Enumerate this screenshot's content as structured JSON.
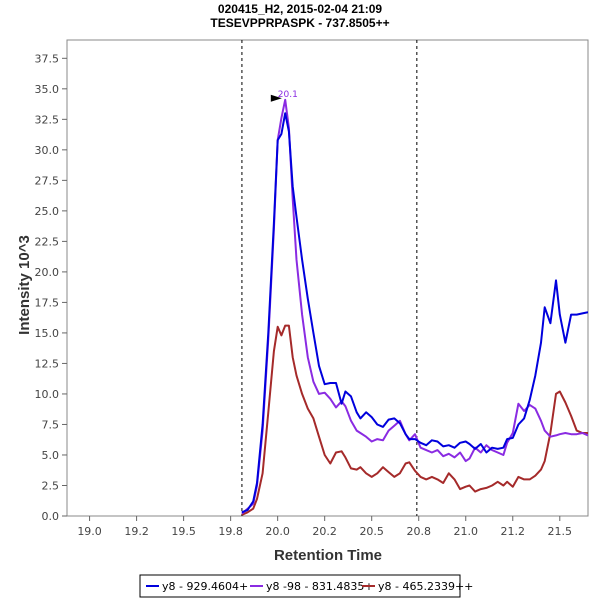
{
  "chart_data": {
    "type": "line",
    "title": "020415_H2, 2015-02-04 21:09",
    "subtitle": "TESEVPPRPASPK - 737.8505++",
    "xlabel": "Retention Time",
    "ylabel": "Intensity 10^3",
    "xlim": [
      18.88,
      21.65
    ],
    "ylim": [
      0,
      39
    ],
    "x_ticks": [
      19.0,
      19.25,
      19.5,
      19.75,
      20.0,
      20.25,
      20.5,
      20.75,
      21.0,
      21.25,
      21.5
    ],
    "x_tick_labels": [
      "19.0",
      "19.2",
      "19.5",
      "19.8",
      "20.0",
      "20.2",
      "20.5",
      "20.8",
      "21.0",
      "21.2",
      "21.5"
    ],
    "y_ticks": [
      0,
      2.5,
      5,
      7.5,
      10,
      12.5,
      15,
      17.5,
      20,
      22.5,
      25,
      27.5,
      30,
      32.5,
      35,
      37.5
    ],
    "y_tick_labels": [
      "0.0",
      "2.5",
      "5.0",
      "7.5",
      "10.0",
      "12.5",
      "15.0",
      "17.5",
      "20.0",
      "22.5",
      "25.0",
      "27.5",
      "30.0",
      "32.5",
      "35.0",
      "37.5"
    ],
    "boundaries": [
      19.81,
      20.74
    ],
    "peak_annotation": {
      "label": "20.1",
      "x": 20.07,
      "y": 34.1,
      "color": "#8a2be2"
    },
    "legend_position": "bottom-center",
    "series": [
      {
        "name": "y8 - 929.4604+",
        "color": "#0000dd",
        "x": [
          19.81,
          19.84,
          19.87,
          19.89,
          19.92,
          19.95,
          19.98,
          20.0,
          20.02,
          20.04,
          20.06,
          20.08,
          20.1,
          20.13,
          20.16,
          20.19,
          20.22,
          20.25,
          20.28,
          20.31,
          20.34,
          20.36,
          20.39,
          20.42,
          20.44,
          20.47,
          20.5,
          20.53,
          20.56,
          20.59,
          20.62,
          20.65,
          20.68,
          20.7,
          20.73,
          20.76,
          20.79,
          20.82,
          20.85,
          20.88,
          20.91,
          20.94,
          20.97,
          21.0,
          21.02,
          21.05,
          21.08,
          21.11,
          21.14,
          21.17,
          21.2,
          21.22,
          21.25,
          21.28,
          21.31,
          21.34,
          21.37,
          21.4,
          21.42,
          21.45,
          21.48,
          21.5,
          21.53,
          21.56,
          21.59,
          21.62,
          21.65
        ],
        "y": [
          0.3,
          0.5,
          1.2,
          2.7,
          7.5,
          15.0,
          24.0,
          30.8,
          31.3,
          33.0,
          31.5,
          27.0,
          24.5,
          21.0,
          17.8,
          15.0,
          12.3,
          10.8,
          10.9,
          10.9,
          9.2,
          10.2,
          9.8,
          8.5,
          8.0,
          8.5,
          8.1,
          7.5,
          7.3,
          7.9,
          8.0,
          7.6,
          6.7,
          6.3,
          6.3,
          6.0,
          5.8,
          6.2,
          6.1,
          5.7,
          5.8,
          5.6,
          6.0,
          6.1,
          5.9,
          5.5,
          5.9,
          5.2,
          5.6,
          5.5,
          5.6,
          6.3,
          6.4,
          7.5,
          8.0,
          9.5,
          11.5,
          14.2,
          17.1,
          15.8,
          19.3,
          16.5,
          14.2,
          16.5,
          16.5,
          16.6,
          16.7
        ]
      },
      {
        "name": "y8 -98 - 831.4835+",
        "color": "#8a2be2",
        "x": [
          19.81,
          19.84,
          19.87,
          19.89,
          19.92,
          19.95,
          19.98,
          20.0,
          20.02,
          20.04,
          20.06,
          20.08,
          20.1,
          20.13,
          20.16,
          20.19,
          20.22,
          20.25,
          20.28,
          20.31,
          20.34,
          20.36,
          20.39,
          20.42,
          20.44,
          20.47,
          20.5,
          20.53,
          20.56,
          20.59,
          20.62,
          20.65,
          20.68,
          20.7,
          20.73,
          20.76,
          20.79,
          20.82,
          20.85,
          20.88,
          20.91,
          20.94,
          20.97,
          21.0,
          21.02,
          21.05,
          21.08,
          21.11,
          21.14,
          21.17,
          21.2,
          21.22,
          21.25,
          21.28,
          21.31,
          21.34,
          21.37,
          21.4,
          21.42,
          21.45,
          21.48,
          21.5,
          21.53,
          21.56,
          21.59,
          21.62,
          21.65
        ],
        "y": [
          0.2,
          0.6,
          1.0,
          2.5,
          7.0,
          14.5,
          23.5,
          30.8,
          32.6,
          34.1,
          31.8,
          26.0,
          21.0,
          16.5,
          13.0,
          11.0,
          10.0,
          10.1,
          9.6,
          8.9,
          9.4,
          9.0,
          7.8,
          7.0,
          6.8,
          6.5,
          6.1,
          6.3,
          6.2,
          7.0,
          7.4,
          7.8,
          6.7,
          6.2,
          6.7,
          5.6,
          5.4,
          5.2,
          5.4,
          4.9,
          5.1,
          4.8,
          5.2,
          4.5,
          4.7,
          5.6,
          5.2,
          5.8,
          5.4,
          5.2,
          5.0,
          6.0,
          6.8,
          9.2,
          8.6,
          9.1,
          8.8,
          7.8,
          7.0,
          6.5,
          6.6,
          6.7,
          6.8,
          6.7,
          6.7,
          6.8,
          6.6
        ]
      },
      {
        "name": "y8 - 465.2339++",
        "color": "#a52a2a",
        "x": [
          19.81,
          19.84,
          19.87,
          19.89,
          19.92,
          19.95,
          19.98,
          20.0,
          20.02,
          20.04,
          20.06,
          20.08,
          20.1,
          20.13,
          20.16,
          20.19,
          20.22,
          20.25,
          20.28,
          20.31,
          20.34,
          20.36,
          20.39,
          20.42,
          20.44,
          20.47,
          20.5,
          20.53,
          20.56,
          20.59,
          20.62,
          20.65,
          20.68,
          20.7,
          20.73,
          20.76,
          20.79,
          20.82,
          20.85,
          20.88,
          20.91,
          20.94,
          20.97,
          21.0,
          21.02,
          21.05,
          21.08,
          21.11,
          21.14,
          21.17,
          21.2,
          21.22,
          21.25,
          21.28,
          21.31,
          21.34,
          21.37,
          21.4,
          21.42,
          21.45,
          21.48,
          21.5,
          21.53,
          21.56,
          21.59,
          21.62,
          21.65
        ],
        "y": [
          0.1,
          0.3,
          0.6,
          1.4,
          3.5,
          8.5,
          13.5,
          15.5,
          14.8,
          15.6,
          15.6,
          13.0,
          11.5,
          10.0,
          8.8,
          8.0,
          6.5,
          5.0,
          4.3,
          5.2,
          5.3,
          4.8,
          3.9,
          3.8,
          4.0,
          3.5,
          3.2,
          3.5,
          4.0,
          3.6,
          3.2,
          3.5,
          4.3,
          4.4,
          3.7,
          3.2,
          3.0,
          3.2,
          3.0,
          2.7,
          3.5,
          3.0,
          2.2,
          2.4,
          2.5,
          2.0,
          2.2,
          2.3,
          2.5,
          2.8,
          2.5,
          2.8,
          2.4,
          3.2,
          3.0,
          3.0,
          3.3,
          3.8,
          4.5,
          6.8,
          10.0,
          10.2,
          9.3,
          8.2,
          7.0,
          6.8,
          6.8
        ]
      }
    ]
  }
}
